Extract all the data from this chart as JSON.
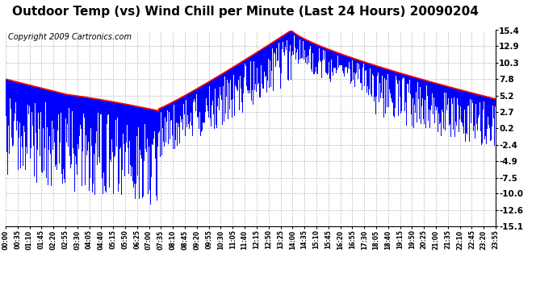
{
  "title": "Outdoor Temp (vs) Wind Chill per Minute (Last 24 Hours) 20090204",
  "copyright": "Copyright 2009 Cartronics.com",
  "yticks": [
    15.4,
    12.9,
    10.3,
    7.8,
    5.2,
    2.7,
    0.2,
    -2.4,
    -4.9,
    -7.5,
    -10.0,
    -12.6,
    -15.1
  ],
  "ylim": [
    -15.1,
    15.4
  ],
  "xtick_labels": [
    "00:00",
    "00:35",
    "01:10",
    "01:45",
    "02:20",
    "02:55",
    "03:30",
    "04:05",
    "04:40",
    "05:15",
    "05:50",
    "06:25",
    "07:00",
    "07:35",
    "08:10",
    "08:45",
    "09:20",
    "09:55",
    "10:30",
    "11:05",
    "11:40",
    "12:15",
    "12:50",
    "13:25",
    "14:00",
    "14:35",
    "15:10",
    "15:45",
    "16:20",
    "16:55",
    "17:30",
    "18:05",
    "18:40",
    "19:15",
    "19:50",
    "20:25",
    "21:00",
    "21:35",
    "22:10",
    "22:45",
    "23:20",
    "23:55"
  ],
  "background_color": "#ffffff",
  "plot_bg_color": "#ffffff",
  "grid_color": "#bbbbbb",
  "red_line_color": "#ff0000",
  "blue_bar_color": "#0000ff",
  "title_fontsize": 11,
  "copyright_fontsize": 7
}
